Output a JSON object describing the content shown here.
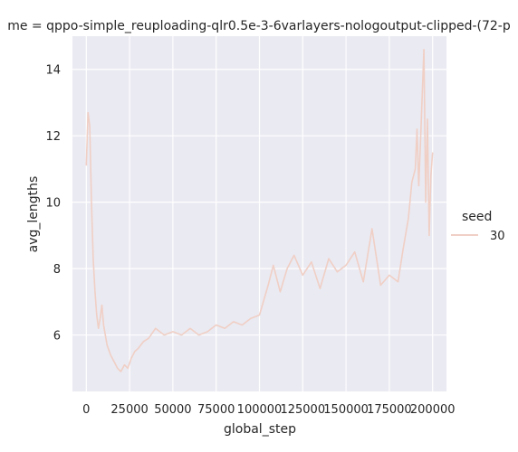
{
  "chart_data": {
    "type": "line",
    "title": "me = qppo-simple_reuploading-qlr0.5e-3-6varlayers-nologoutput-clipped-(72-p",
    "xlabel": "global_step",
    "ylabel": "avg_lengths",
    "xlim": [
      -8000,
      208000
    ],
    "ylim": [
      4.3,
      15.0
    ],
    "x_ticks": [
      0,
      25000,
      50000,
      75000,
      100000,
      125000,
      150000,
      175000,
      200000
    ],
    "x_tick_labels": [
      "0",
      "25000",
      "50000",
      "75000",
      "100000",
      "125000",
      "150000",
      "175000",
      "200000"
    ],
    "y_ticks": [
      6,
      8,
      10,
      12,
      14
    ],
    "y_tick_labels": [
      "6",
      "8",
      "10",
      "12",
      "14"
    ],
    "grid": true,
    "legend_placement": "right",
    "legend": {
      "title": "seed",
      "entries": [
        {
          "label": "30",
          "color": "#f0d0c6"
        }
      ]
    },
    "colors": {
      "background": "#eaeaf2",
      "grid": "#ffffff",
      "line": "#f0cfc5"
    },
    "series": [
      {
        "name": "30",
        "x": [
          0,
          1000,
          2000,
          3000,
          4000,
          5000,
          6000,
          7000,
          8000,
          9000,
          10000,
          12000,
          14000,
          16000,
          18000,
          20000,
          22000,
          24000,
          26000,
          28000,
          30000,
          33000,
          36000,
          40000,
          45000,
          50000,
          55000,
          60000,
          65000,
          70000,
          75000,
          80000,
          85000,
          90000,
          95000,
          100000,
          105000,
          108000,
          112000,
          116000,
          120000,
          125000,
          130000,
          135000,
          140000,
          145000,
          150000,
          155000,
          160000,
          165000,
          170000,
          175000,
          180000,
          183000,
          186000,
          188000,
          190000,
          191000,
          192000,
          193000,
          194000,
          195000,
          196000,
          197000,
          198000,
          199000,
          200000
        ],
        "y": [
          11.1,
          12.7,
          12.3,
          10.0,
          8.3,
          7.3,
          6.6,
          6.2,
          6.5,
          6.9,
          6.3,
          5.7,
          5.4,
          5.2,
          5.0,
          4.9,
          5.1,
          5.0,
          5.3,
          5.5,
          5.6,
          5.8,
          5.9,
          6.2,
          6.0,
          6.1,
          6.0,
          6.2,
          6.0,
          6.1,
          6.3,
          6.2,
          6.4,
          6.3,
          6.5,
          6.6,
          7.5,
          8.1,
          7.3,
          8.0,
          8.4,
          7.8,
          8.2,
          7.4,
          8.3,
          7.9,
          8.1,
          8.5,
          7.6,
          9.2,
          7.5,
          7.8,
          7.6,
          8.6,
          9.5,
          10.6,
          11.0,
          12.2,
          10.5,
          11.8,
          13.2,
          14.6,
          10.0,
          12.5,
          9.0,
          10.8,
          11.5
        ]
      }
    ]
  }
}
